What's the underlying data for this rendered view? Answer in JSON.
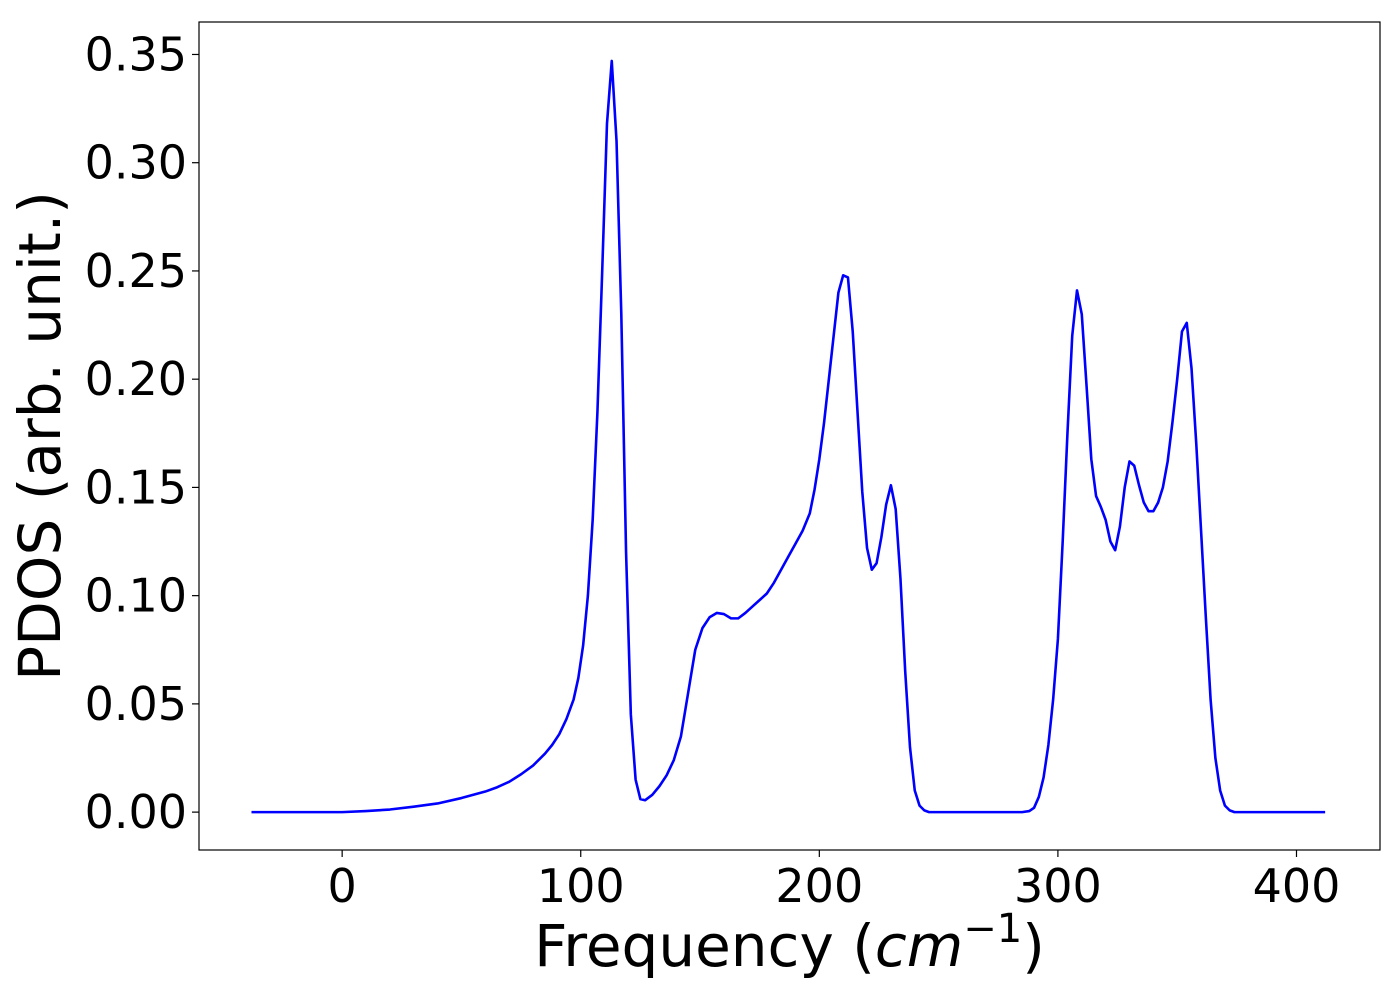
{
  "chart_data": {
    "type": "line",
    "xlabel": "Frequency (cm⁻¹)",
    "xlabel_parts": {
      "prefix": "Frequency (",
      "base": "cm",
      "exponent": "−1",
      "suffix": ")"
    },
    "ylabel": "PDOS (arb. unit.)",
    "xlim": [
      -60,
      435
    ],
    "ylim": [
      -0.0175,
      0.365
    ],
    "x_ticks": [
      0,
      100,
      200,
      300,
      400
    ],
    "x_tick_labels": [
      "0",
      "100",
      "200",
      "300",
      "400"
    ],
    "y_ticks": [
      0.0,
      0.05,
      0.1,
      0.15,
      0.2,
      0.25,
      0.3,
      0.35
    ],
    "y_tick_labels": [
      "0.00",
      "0.05",
      "0.10",
      "0.15",
      "0.20",
      "0.25",
      "0.30",
      "0.35"
    ],
    "grid": false,
    "series": [
      {
        "color": "#0000ff",
        "points": [
          [
            -38,
            0.0
          ],
          [
            0,
            0.0
          ],
          [
            10,
            0.0005
          ],
          [
            20,
            0.0012
          ],
          [
            30,
            0.0025
          ],
          [
            40,
            0.004
          ],
          [
            50,
            0.0065
          ],
          [
            60,
            0.0095
          ],
          [
            65,
            0.0115
          ],
          [
            70,
            0.014
          ],
          [
            75,
            0.0175
          ],
          [
            80,
            0.0215
          ],
          [
            85,
            0.027
          ],
          [
            88,
            0.031
          ],
          [
            91,
            0.036
          ],
          [
            94,
            0.043
          ],
          [
            97,
            0.052
          ],
          [
            99,
            0.062
          ],
          [
            101,
            0.077
          ],
          [
            103,
            0.1
          ],
          [
            105,
            0.135
          ],
          [
            107,
            0.185
          ],
          [
            109,
            0.25
          ],
          [
            111,
            0.318
          ],
          [
            113,
            0.347
          ],
          [
            115,
            0.31
          ],
          [
            117,
            0.23
          ],
          [
            119,
            0.12
          ],
          [
            121,
            0.045
          ],
          [
            123,
            0.015
          ],
          [
            125,
            0.006
          ],
          [
            127,
            0.0055
          ],
          [
            130,
            0.008
          ],
          [
            133,
            0.012
          ],
          [
            136,
            0.017
          ],
          [
            139,
            0.024
          ],
          [
            142,
            0.035
          ],
          [
            145,
            0.055
          ],
          [
            148,
            0.075
          ],
          [
            151,
            0.085
          ],
          [
            154,
            0.09
          ],
          [
            157,
            0.092
          ],
          [
            160,
            0.0915
          ],
          [
            163,
            0.0895
          ],
          [
            166,
            0.0895
          ],
          [
            169,
            0.092
          ],
          [
            172,
            0.095
          ],
          [
            175,
            0.098
          ],
          [
            178,
            0.101
          ],
          [
            181,
            0.106
          ],
          [
            184,
            0.112
          ],
          [
            187,
            0.118
          ],
          [
            190,
            0.124
          ],
          [
            193,
            0.13
          ],
          [
            196,
            0.138
          ],
          [
            198,
            0.149
          ],
          [
            200,
            0.163
          ],
          [
            202,
            0.18
          ],
          [
            204,
            0.2
          ],
          [
            206,
            0.22
          ],
          [
            208,
            0.24
          ],
          [
            210,
            0.248
          ],
          [
            212,
            0.247
          ],
          [
            214,
            0.222
          ],
          [
            216,
            0.185
          ],
          [
            218,
            0.148
          ],
          [
            220,
            0.122
          ],
          [
            222,
            0.112
          ],
          [
            224,
            0.115
          ],
          [
            226,
            0.127
          ],
          [
            228,
            0.142
          ],
          [
            230,
            0.151
          ],
          [
            232,
            0.14
          ],
          [
            234,
            0.108
          ],
          [
            236,
            0.065
          ],
          [
            238,
            0.03
          ],
          [
            240,
            0.01
          ],
          [
            242,
            0.003
          ],
          [
            244,
            0.0008
          ],
          [
            246,
            0.0
          ],
          [
            285,
            0.0
          ],
          [
            288,
            0.0005
          ],
          [
            290,
            0.002
          ],
          [
            292,
            0.007
          ],
          [
            294,
            0.016
          ],
          [
            296,
            0.031
          ],
          [
            298,
            0.052
          ],
          [
            300,
            0.08
          ],
          [
            302,
            0.125
          ],
          [
            304,
            0.175
          ],
          [
            306,
            0.22
          ],
          [
            308,
            0.241
          ],
          [
            310,
            0.23
          ],
          [
            312,
            0.197
          ],
          [
            314,
            0.163
          ],
          [
            316,
            0.146
          ],
          [
            318,
            0.141
          ],
          [
            320,
            0.135
          ],
          [
            322,
            0.125
          ],
          [
            324,
            0.121
          ],
          [
            326,
            0.132
          ],
          [
            328,
            0.15
          ],
          [
            330,
            0.162
          ],
          [
            332,
            0.16
          ],
          [
            334,
            0.151
          ],
          [
            336,
            0.143
          ],
          [
            338,
            0.139
          ],
          [
            340,
            0.139
          ],
          [
            342,
            0.143
          ],
          [
            344,
            0.15
          ],
          [
            346,
            0.162
          ],
          [
            348,
            0.18
          ],
          [
            350,
            0.2
          ],
          [
            352,
            0.222
          ],
          [
            354,
            0.226
          ],
          [
            356,
            0.205
          ],
          [
            358,
            0.17
          ],
          [
            360,
            0.13
          ],
          [
            362,
            0.09
          ],
          [
            364,
            0.052
          ],
          [
            366,
            0.025
          ],
          [
            368,
            0.01
          ],
          [
            370,
            0.003
          ],
          [
            372,
            0.0008
          ],
          [
            374,
            0.0
          ],
          [
            412,
            0.0
          ]
        ]
      }
    ]
  }
}
